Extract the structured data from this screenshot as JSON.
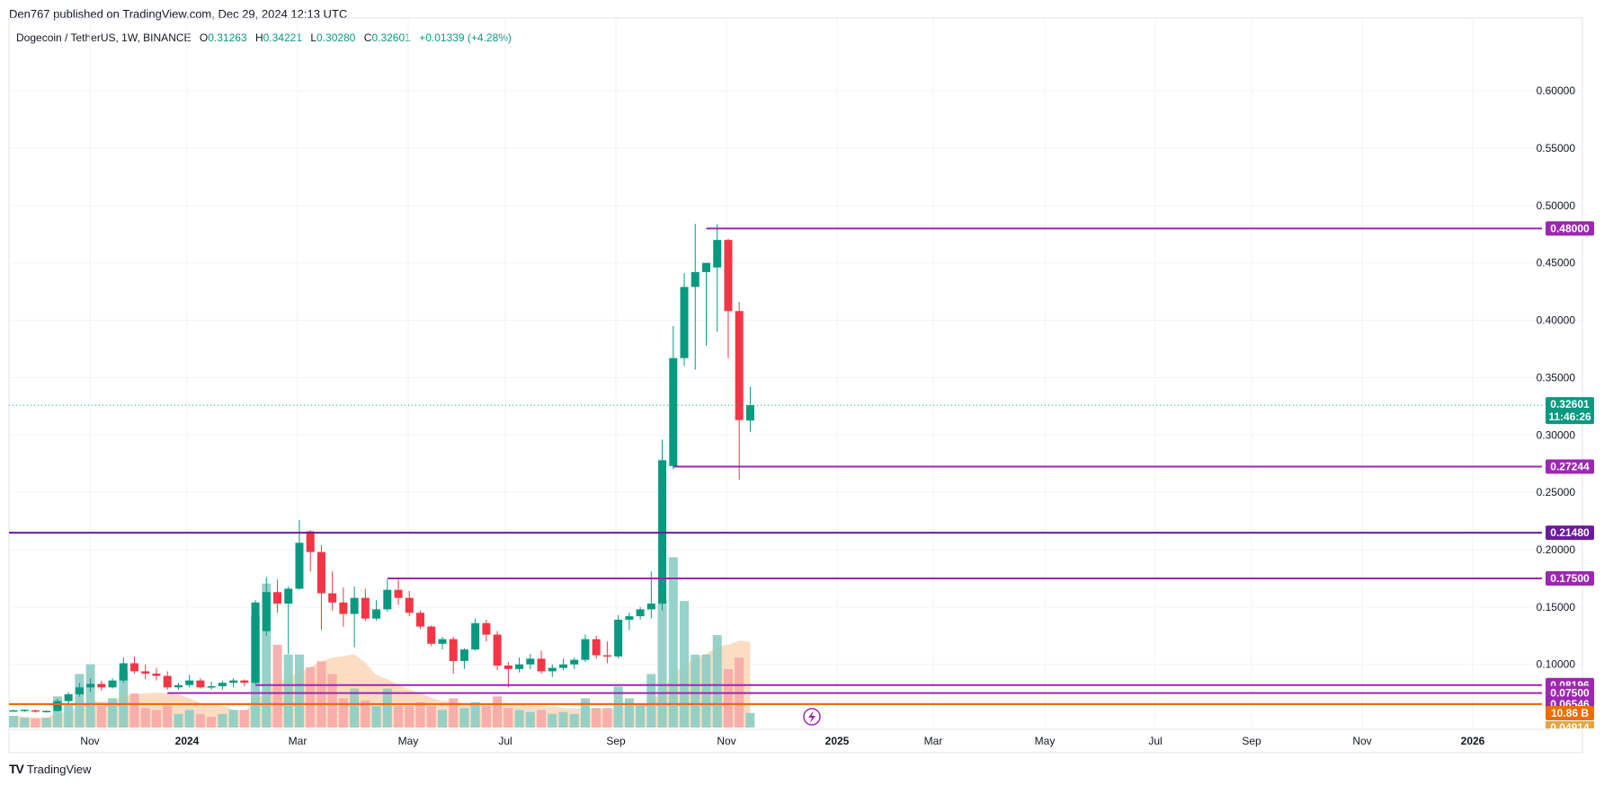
{
  "header": {
    "published_text": "Den767 published on TradingView.com, Dec 29, 2024 12:13 UTC"
  },
  "symbol": {
    "title": "Dogecoin / TetherUS, 1W, BINANCE",
    "open_label": "O",
    "open_value": "0.31263",
    "high_label": "H",
    "high_value": "0.34221",
    "low_label": "L",
    "low_value": "0.30280",
    "close_label": "C",
    "close_value": "0.32601",
    "change": "+0.01339 (+4.28%)"
  },
  "footer": {
    "logo_mark": "TV",
    "logo_text": "TradingView"
  },
  "colors": {
    "up": "#089981",
    "down": "#f23645",
    "vol_up": "#8ccdc4",
    "vol_down": "#f7a9a9",
    "level_line": "#9c27b0",
    "support_line": "#6a1b9a",
    "volume_line": "#ef6c00",
    "ma_fill": "#fbcfa6",
    "current_price_line": "#089981"
  },
  "chart_data": {
    "type": "candlestick",
    "title": "Dogecoin / TetherUS, 1W, BINANCE",
    "ylim": [
      0.045,
      0.64
    ],
    "yticks": [
      "0.60000",
      "0.55000",
      "0.50000",
      "0.45000",
      "0.40000",
      "0.35000",
      "0.30000",
      "0.25000",
      "0.20000",
      "0.15000",
      "0.10000"
    ],
    "xticks": [
      "Nov",
      "2024",
      "Mar",
      "May",
      "Jul",
      "Sep",
      "Nov",
      "2025",
      "Mar",
      "May",
      "Jul",
      "Sep",
      "Nov",
      "2026"
    ],
    "grid": true,
    "candles": [
      {
        "o": 0.0595,
        "h": 0.0605,
        "l": 0.059,
        "c": 0.06
      },
      {
        "o": 0.06,
        "h": 0.061,
        "l": 0.0585,
        "c": 0.0605
      },
      {
        "o": 0.06,
        "h": 0.0605,
        "l": 0.058,
        "c": 0.059
      },
      {
        "o": 0.059,
        "h": 0.06,
        "l": 0.058,
        "c": 0.0595
      },
      {
        "o": 0.0595,
        "h": 0.07,
        "l": 0.059,
        "c": 0.068
      },
      {
        "o": 0.068,
        "h": 0.076,
        "l": 0.066,
        "c": 0.074
      },
      {
        "o": 0.074,
        "h": 0.084,
        "l": 0.072,
        "c": 0.08
      },
      {
        "o": 0.08,
        "h": 0.088,
        "l": 0.076,
        "c": 0.083
      },
      {
        "o": 0.083,
        "h": 0.086,
        "l": 0.077,
        "c": 0.08
      },
      {
        "o": 0.08,
        "h": 0.088,
        "l": 0.079,
        "c": 0.086
      },
      {
        "o": 0.086,
        "h": 0.106,
        "l": 0.084,
        "c": 0.101
      },
      {
        "o": 0.101,
        "h": 0.107,
        "l": 0.092,
        "c": 0.094
      },
      {
        "o": 0.094,
        "h": 0.1,
        "l": 0.087,
        "c": 0.092
      },
      {
        "o": 0.092,
        "h": 0.097,
        "l": 0.086,
        "c": 0.09
      },
      {
        "o": 0.09,
        "h": 0.094,
        "l": 0.078,
        "c": 0.08
      },
      {
        "o": 0.08,
        "h": 0.084,
        "l": 0.078,
        "c": 0.082
      },
      {
        "o": 0.082,
        "h": 0.091,
        "l": 0.08,
        "c": 0.086
      },
      {
        "o": 0.086,
        "h": 0.088,
        "l": 0.079,
        "c": 0.08
      },
      {
        "o": 0.08,
        "h": 0.085,
        "l": 0.078,
        "c": 0.081
      },
      {
        "o": 0.081,
        "h": 0.086,
        "l": 0.078,
        "c": 0.084
      },
      {
        "o": 0.084,
        "h": 0.088,
        "l": 0.08,
        "c": 0.086
      },
      {
        "o": 0.086,
        "h": 0.087,
        "l": 0.081,
        "c": 0.084
      },
      {
        "o": 0.084,
        "h": 0.156,
        "l": 0.083,
        "c": 0.154
      },
      {
        "o": 0.129,
        "h": 0.176,
        "l": 0.125,
        "c": 0.163
      },
      {
        "o": 0.163,
        "h": 0.174,
        "l": 0.145,
        "c": 0.153
      },
      {
        "o": 0.153,
        "h": 0.168,
        "l": 0.109,
        "c": 0.166
      },
      {
        "o": 0.166,
        "h": 0.226,
        "l": 0.165,
        "c": 0.206
      },
      {
        "o": 0.216,
        "h": 0.217,
        "l": 0.181,
        "c": 0.198
      },
      {
        "o": 0.198,
        "h": 0.204,
        "l": 0.13,
        "c": 0.162
      },
      {
        "o": 0.162,
        "h": 0.181,
        "l": 0.147,
        "c": 0.154
      },
      {
        "o": 0.154,
        "h": 0.167,
        "l": 0.133,
        "c": 0.144
      },
      {
        "o": 0.144,
        "h": 0.168,
        "l": 0.115,
        "c": 0.158
      },
      {
        "o": 0.158,
        "h": 0.166,
        "l": 0.138,
        "c": 0.14
      },
      {
        "o": 0.14,
        "h": 0.156,
        "l": 0.138,
        "c": 0.148
      },
      {
        "o": 0.148,
        "h": 0.174,
        "l": 0.146,
        "c": 0.165
      },
      {
        "o": 0.165,
        "h": 0.174,
        "l": 0.152,
        "c": 0.158
      },
      {
        "o": 0.158,
        "h": 0.164,
        "l": 0.142,
        "c": 0.145
      },
      {
        "o": 0.145,
        "h": 0.147,
        "l": 0.131,
        "c": 0.133
      },
      {
        "o": 0.133,
        "h": 0.134,
        "l": 0.116,
        "c": 0.118
      },
      {
        "o": 0.118,
        "h": 0.124,
        "l": 0.113,
        "c": 0.122
      },
      {
        "o": 0.122,
        "h": 0.124,
        "l": 0.092,
        "c": 0.103
      },
      {
        "o": 0.103,
        "h": 0.114,
        "l": 0.096,
        "c": 0.113
      },
      {
        "o": 0.113,
        "h": 0.14,
        "l": 0.112,
        "c": 0.136
      },
      {
        "o": 0.136,
        "h": 0.139,
        "l": 0.12,
        "c": 0.126
      },
      {
        "o": 0.126,
        "h": 0.129,
        "l": 0.095,
        "c": 0.099
      },
      {
        "o": 0.099,
        "h": 0.102,
        "l": 0.08,
        "c": 0.096
      },
      {
        "o": 0.096,
        "h": 0.106,
        "l": 0.093,
        "c": 0.1
      },
      {
        "o": 0.1,
        "h": 0.109,
        "l": 0.096,
        "c": 0.105
      },
      {
        "o": 0.105,
        "h": 0.112,
        "l": 0.092,
        "c": 0.094
      },
      {
        "o": 0.094,
        "h": 0.1,
        "l": 0.089,
        "c": 0.097
      },
      {
        "o": 0.097,
        "h": 0.105,
        "l": 0.095,
        "c": 0.1
      },
      {
        "o": 0.1,
        "h": 0.106,
        "l": 0.096,
        "c": 0.104
      },
      {
        "o": 0.104,
        "h": 0.126,
        "l": 0.102,
        "c": 0.122
      },
      {
        "o": 0.122,
        "h": 0.125,
        "l": 0.105,
        "c": 0.108
      },
      {
        "o": 0.108,
        "h": 0.12,
        "l": 0.101,
        "c": 0.107
      },
      {
        "o": 0.107,
        "h": 0.143,
        "l": 0.105,
        "c": 0.139
      },
      {
        "o": 0.139,
        "h": 0.145,
        "l": 0.13,
        "c": 0.142
      },
      {
        "o": 0.142,
        "h": 0.15,
        "l": 0.139,
        "c": 0.148
      },
      {
        "o": 0.148,
        "h": 0.181,
        "l": 0.14,
        "c": 0.153
      },
      {
        "o": 0.153,
        "h": 0.296,
        "l": 0.147,
        "c": 0.278
      },
      {
        "o": 0.273,
        "h": 0.395,
        "l": 0.27,
        "c": 0.367
      },
      {
        "o": 0.367,
        "h": 0.441,
        "l": 0.36,
        "c": 0.429
      },
      {
        "o": 0.429,
        "h": 0.484,
        "l": 0.357,
        "c": 0.442
      },
      {
        "o": 0.442,
        "h": 0.45,
        "l": 0.378,
        "c": 0.45
      },
      {
        "o": 0.446,
        "h": 0.484,
        "l": 0.39,
        "c": 0.47
      },
      {
        "o": 0.47,
        "h": 0.471,
        "l": 0.367,
        "c": 0.408
      },
      {
        "o": 0.408,
        "h": 0.416,
        "l": 0.261,
        "c": 0.313
      },
      {
        "o": 0.3126,
        "h": 0.3422,
        "l": 0.3028,
        "c": 0.326
      }
    ],
    "volume_bars": [
      {
        "v": 0.12,
        "up": true
      },
      {
        "v": 0.1,
        "up": true
      },
      {
        "v": 0.09,
        "up": false
      },
      {
        "v": 0.1,
        "up": true
      },
      {
        "v": 0.32,
        "up": true
      },
      {
        "v": 0.25,
        "up": true
      },
      {
        "v": 0.55,
        "up": true
      },
      {
        "v": 0.65,
        "up": true
      },
      {
        "v": 0.22,
        "up": false
      },
      {
        "v": 0.3,
        "up": true
      },
      {
        "v": 0.58,
        "up": true
      },
      {
        "v": 0.35,
        "up": false
      },
      {
        "v": 0.2,
        "up": false
      },
      {
        "v": 0.18,
        "up": false
      },
      {
        "v": 0.22,
        "up": false
      },
      {
        "v": 0.14,
        "up": true
      },
      {
        "v": 0.18,
        "up": true
      },
      {
        "v": 0.14,
        "up": false
      },
      {
        "v": 0.11,
        "up": false
      },
      {
        "v": 0.14,
        "up": true
      },
      {
        "v": 0.18,
        "up": true
      },
      {
        "v": 0.18,
        "up": false
      },
      {
        "v": 1.15,
        "up": true
      },
      {
        "v": 1.48,
        "up": true
      },
      {
        "v": 0.85,
        "up": false
      },
      {
        "v": 0.75,
        "up": true
      },
      {
        "v": 0.75,
        "up": true
      },
      {
        "v": 0.62,
        "up": false
      },
      {
        "v": 0.68,
        "up": false
      },
      {
        "v": 0.55,
        "up": false
      },
      {
        "v": 0.3,
        "up": false
      },
      {
        "v": 0.4,
        "up": true
      },
      {
        "v": 0.28,
        "up": false
      },
      {
        "v": 0.22,
        "up": true
      },
      {
        "v": 0.4,
        "up": true
      },
      {
        "v": 0.22,
        "up": false
      },
      {
        "v": 0.22,
        "up": false
      },
      {
        "v": 0.26,
        "up": false
      },
      {
        "v": 0.22,
        "up": false
      },
      {
        "v": 0.18,
        "up": true
      },
      {
        "v": 0.3,
        "up": false
      },
      {
        "v": 0.2,
        "up": true
      },
      {
        "v": 0.26,
        "up": true
      },
      {
        "v": 0.22,
        "up": false
      },
      {
        "v": 0.32,
        "up": false
      },
      {
        "v": 0.2,
        "up": false
      },
      {
        "v": 0.18,
        "up": true
      },
      {
        "v": 0.16,
        "up": true
      },
      {
        "v": 0.18,
        "up": false
      },
      {
        "v": 0.14,
        "up": true
      },
      {
        "v": 0.16,
        "up": true
      },
      {
        "v": 0.14,
        "up": true
      },
      {
        "v": 0.3,
        "up": true
      },
      {
        "v": 0.2,
        "up": false
      },
      {
        "v": 0.2,
        "up": false
      },
      {
        "v": 0.42,
        "up": true
      },
      {
        "v": 0.3,
        "up": true
      },
      {
        "v": 0.25,
        "up": true
      },
      {
        "v": 0.55,
        "up": true
      },
      {
        "v": 1.3,
        "up": true
      },
      {
        "v": 1.75,
        "up": true
      },
      {
        "v": 1.3,
        "up": true
      },
      {
        "v": 0.75,
        "up": true
      },
      {
        "v": 0.75,
        "up": true
      },
      {
        "v": 0.95,
        "up": true
      },
      {
        "v": 0.6,
        "up": false
      },
      {
        "v": 0.72,
        "up": false
      },
      {
        "v": 0.15,
        "up": true
      }
    ],
    "volume_scale_max": 1.8,
    "horizontal_levels": [
      {
        "price": 0.48,
        "label": "0.48000",
        "start_candle": 63
      },
      {
        "price": 0.27244,
        "label": "0.27244",
        "start_candle": 60
      },
      {
        "price": 0.2148,
        "label": "0.21480",
        "start_candle": 0
      },
      {
        "price": 0.175,
        "label": "0.17500",
        "start_candle": 34
      },
      {
        "price": 0.08196,
        "label": "0.08196",
        "start_candle": 22
      },
      {
        "price": 0.075,
        "label": "0.07500",
        "start_candle": 14
      },
      {
        "price": 0.06546,
        "label": "0.06546",
        "start_candle": 0
      }
    ],
    "current_price": {
      "price": 0.32601,
      "label": "0.32601",
      "countdown": "11:46:26"
    },
    "volume_level": {
      "label": "10.86 B"
    },
    "bottom_tag": {
      "label": "0.04914"
    }
  }
}
